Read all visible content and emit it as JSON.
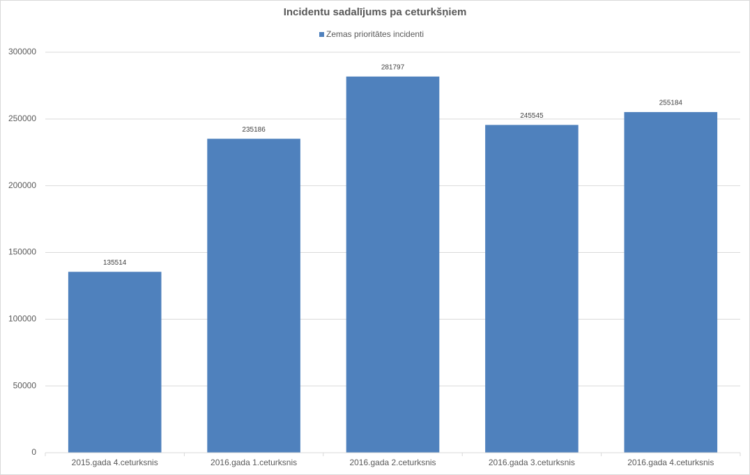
{
  "chart_data": {
    "type": "bar",
    "title": "Incidentu sadalījums pa ceturkšņiem",
    "categories": [
      "2015.gada 4.ceturksnis",
      "2016.gada 1.ceturksnis",
      "2016.gada 2.ceturksnis",
      "2016.gada 3.ceturksnis",
      "2016.gada 4.ceturksnis"
    ],
    "series": [
      {
        "name": "Zemas prioritātes incidenti",
        "color": "#4f81bd",
        "values": [
          135514,
          235186,
          281797,
          245545,
          255184
        ]
      }
    ],
    "ylim": [
      0,
      300000
    ],
    "yticks": [
      0,
      50000,
      100000,
      150000,
      200000,
      250000,
      300000
    ],
    "grid": true,
    "legend": "top",
    "data_labels": true
  }
}
